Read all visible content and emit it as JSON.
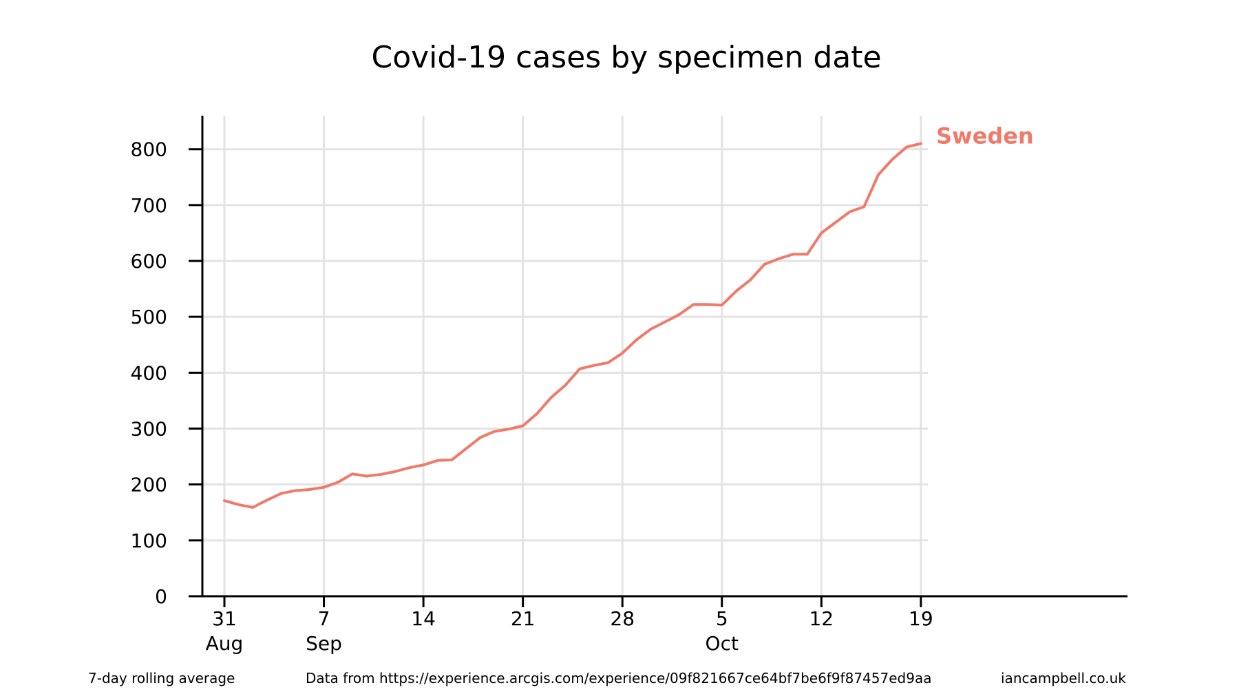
{
  "chart_data": {
    "type": "line",
    "title": "Covid-19 cases by specimen date",
    "xlabel": "",
    "ylabel": "",
    "x_ticks": [
      {
        "day": 0,
        "line1": "31",
        "line2": "Aug"
      },
      {
        "day": 7,
        "line1": "7",
        "line2": "Sep"
      },
      {
        "day": 14,
        "line1": "14",
        "line2": ""
      },
      {
        "day": 21,
        "line1": "21",
        "line2": ""
      },
      {
        "day": 28,
        "line1": "28",
        "line2": ""
      },
      {
        "day": 35,
        "line1": "5",
        "line2": "Oct"
      },
      {
        "day": 42,
        "line1": "12",
        "line2": ""
      },
      {
        "day": 49,
        "line1": "19",
        "line2": ""
      }
    ],
    "y_ticks": [
      0,
      100,
      200,
      300,
      400,
      500,
      600,
      700,
      800
    ],
    "ylim": [
      0,
      860
    ],
    "grid": true,
    "series": [
      {
        "name": "Sweden",
        "color": "#f07a6a",
        "dates": [
          "2020-08-31",
          "2020-09-01",
          "2020-09-02",
          "2020-09-03",
          "2020-09-04",
          "2020-09-05",
          "2020-09-06",
          "2020-09-07",
          "2020-09-08",
          "2020-09-09",
          "2020-09-10",
          "2020-09-11",
          "2020-09-12",
          "2020-09-13",
          "2020-09-14",
          "2020-09-15",
          "2020-09-16",
          "2020-09-17",
          "2020-09-18",
          "2020-09-19",
          "2020-09-20",
          "2020-09-21",
          "2020-09-22",
          "2020-09-23",
          "2020-09-24",
          "2020-09-25",
          "2020-09-26",
          "2020-09-27",
          "2020-09-28",
          "2020-09-29",
          "2020-09-30",
          "2020-10-01",
          "2020-10-02",
          "2020-10-03",
          "2020-10-04",
          "2020-10-05",
          "2020-10-06",
          "2020-10-07",
          "2020-10-08",
          "2020-10-09",
          "2020-10-10",
          "2020-10-11",
          "2020-10-12",
          "2020-10-13",
          "2020-10-14",
          "2020-10-15",
          "2020-10-16",
          "2020-10-17",
          "2020-10-18",
          "2020-10-19"
        ],
        "values": [
          171,
          164,
          159,
          172,
          184,
          189,
          191,
          195,
          204,
          219,
          215,
          218,
          223,
          230,
          235,
          243,
          244,
          264,
          284,
          295,
          299,
          305,
          327,
          356,
          378,
          407,
          413,
          418,
          435,
          459,
          478,
          491,
          504,
          522,
          522,
          521,
          546,
          566,
          594,
          604,
          612,
          612,
          650,
          669,
          688,
          697,
          754,
          782,
          804,
          810
        ]
      }
    ],
    "notes": {
      "left": "7-day rolling average",
      "center": "Data from https://experience.arcgis.com/experience/09f821667ce64bf7be6f9f87457ed9aa",
      "right": "iancampbell.co.uk"
    }
  }
}
